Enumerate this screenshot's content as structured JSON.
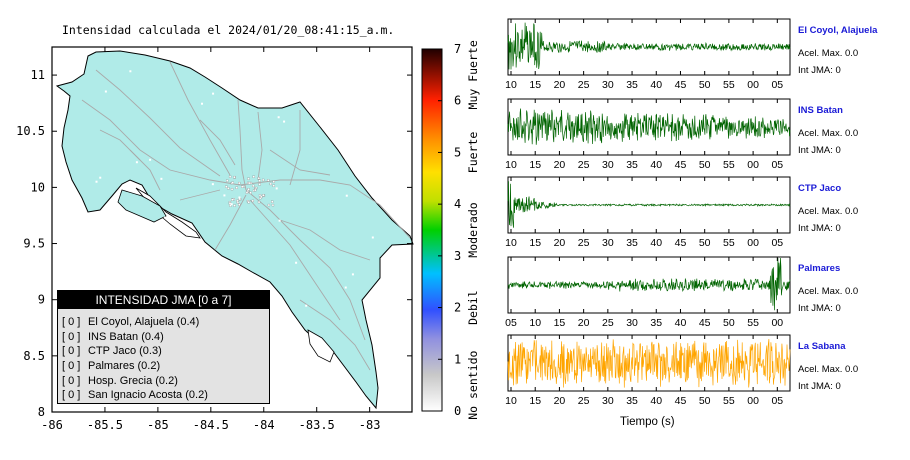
{
  "map": {
    "title": "Intensidad calculada el 2024/01/20_08:41:15_a.m.",
    "x_ticks": [
      "-86",
      "-85.5",
      "-85",
      "-84.5",
      "-84",
      "-83.5",
      "-83"
    ],
    "y_ticks": [
      "11",
      "10.5",
      "10",
      "9.5",
      "9",
      "8.5",
      "8"
    ],
    "colorbar_ticks": [
      "0",
      "1",
      "2",
      "3",
      "4",
      "5",
      "6",
      "7"
    ],
    "colorbar_labels": [
      "No sentido",
      "Debil",
      "Moderado",
      "Fuerte",
      "Muy Fuerte"
    ],
    "colors": {
      "land": "#b0ebe8",
      "border": "#000000",
      "roads": "#a9a9a9"
    }
  },
  "legend": {
    "header": "INTENSIDAD JMA [0 a 7]",
    "items": [
      {
        "level": "[ 0 ]",
        "label": "El Coyol, Alajuela (0.4)"
      },
      {
        "level": "[ 0 ]",
        "label": "INS Batan (0.4)"
      },
      {
        "level": "[ 0 ]",
        "label": "CTP Jaco (0.3)"
      },
      {
        "level": "[ 0 ]",
        "label": "Palmares (0.2)"
      },
      {
        "level": "[ 0 ]",
        "label": "Hosp. Grecia (0.2)"
      },
      {
        "level": "[ 0 ]",
        "label": "San Ignacio Acosta (0.2)"
      }
    ]
  },
  "chart_data": [
    {
      "type": "heatmap",
      "xlim": [
        -86,
        -82.6
      ],
      "ylim": [
        8,
        11.25
      ],
      "colorbar": {
        "range": [
          0,
          7
        ],
        "categories": [
          "No sentido",
          "Debil",
          "Moderado",
          "Fuerte",
          "Muy Fuerte"
        ]
      }
    },
    {
      "type": "line",
      "xlabel": "Tiempo (s)",
      "series": [
        {
          "name": "El Coyol, Alajuela",
          "accel_label": "Acel. Max. 0.0",
          "jma_label": "Int JMA: 0",
          "ticks": [
            "10",
            "15",
            "20",
            "25",
            "30",
            "35",
            "40",
            "45",
            "50",
            "55",
            "00",
            "05"
          ],
          "color": "#006400"
        },
        {
          "name": "INS Batan",
          "accel_label": "Acel. Max. 0.0",
          "jma_label": "Int JMA: 0",
          "ticks": [
            "10",
            "15",
            "20",
            "25",
            "30",
            "35",
            "40",
            "45",
            "50",
            "55",
            "00",
            "05"
          ],
          "color": "#006400"
        },
        {
          "name": "CTP Jaco",
          "accel_label": "Acel. Max. 0.0",
          "jma_label": "Int JMA: 0",
          "ticks": [
            "10",
            "15",
            "20",
            "25",
            "30",
            "35",
            "40",
            "45",
            "50",
            "55",
            "00",
            "05"
          ],
          "color": "#006400"
        },
        {
          "name": "Palmares",
          "accel_label": "Acel. Max. 0.0",
          "jma_label": "Int JMA: 0",
          "ticks": [
            "05",
            "10",
            "15",
            "20",
            "25",
            "30",
            "35",
            "40",
            "45",
            "50",
            "55",
            "00"
          ],
          "color": "#006400"
        },
        {
          "name": "La Sabana",
          "accel_label": "Acel. Max. 0.0",
          "jma_label": "Int JMA: 0",
          "ticks": [
            "10",
            "15",
            "20",
            "25",
            "30",
            "35",
            "40",
            "45",
            "50",
            "55",
            "00",
            "05"
          ],
          "color": "#ffa500"
        }
      ]
    }
  ]
}
